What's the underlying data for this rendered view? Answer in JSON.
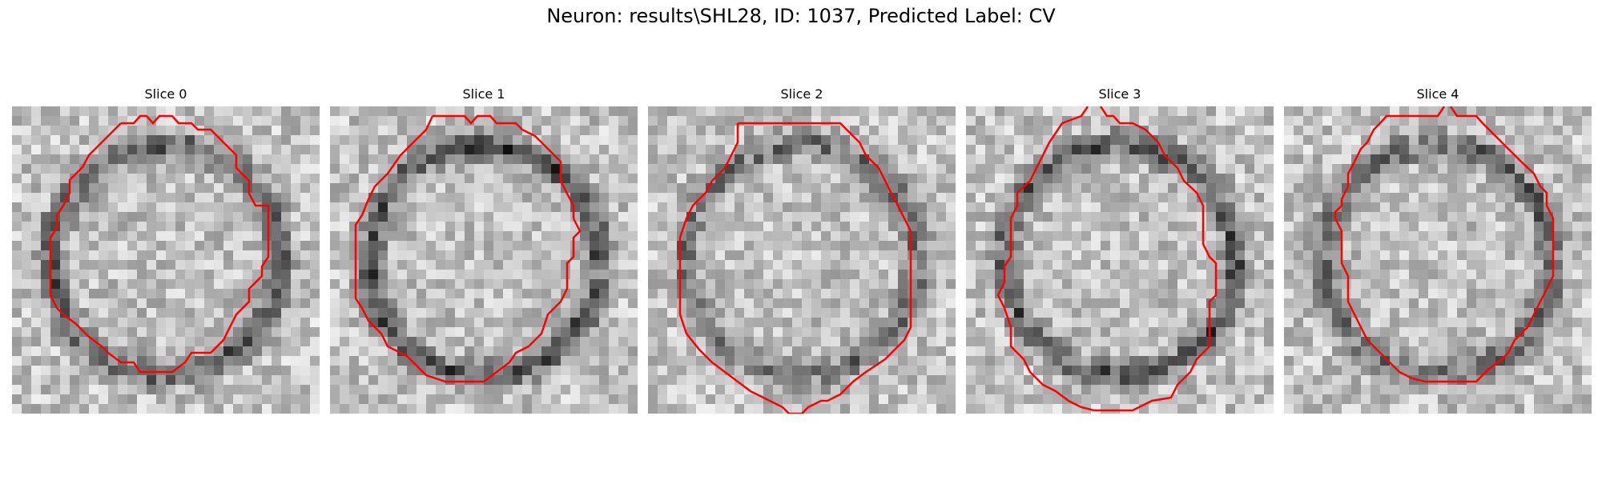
{
  "figure": {
    "title": "Neuron: results\\SHL28, ID: 1037, Predicted Label: CV"
  },
  "panels": [
    {
      "title": "Slice 0",
      "seed": 11,
      "ring_darkness": 0.75
    },
    {
      "title": "Slice 1",
      "seed": 23,
      "ring_darkness": 0.85
    },
    {
      "title": "Slice 2",
      "seed": 37,
      "ring_darkness": 0.65
    },
    {
      "title": "Slice 3",
      "seed": 41,
      "ring_darkness": 0.8
    },
    {
      "title": "Slice 4",
      "seed": 53,
      "ring_darkness": 0.7
    }
  ],
  "style": {
    "contour_color": "#ff0000",
    "colormap": "gray"
  }
}
